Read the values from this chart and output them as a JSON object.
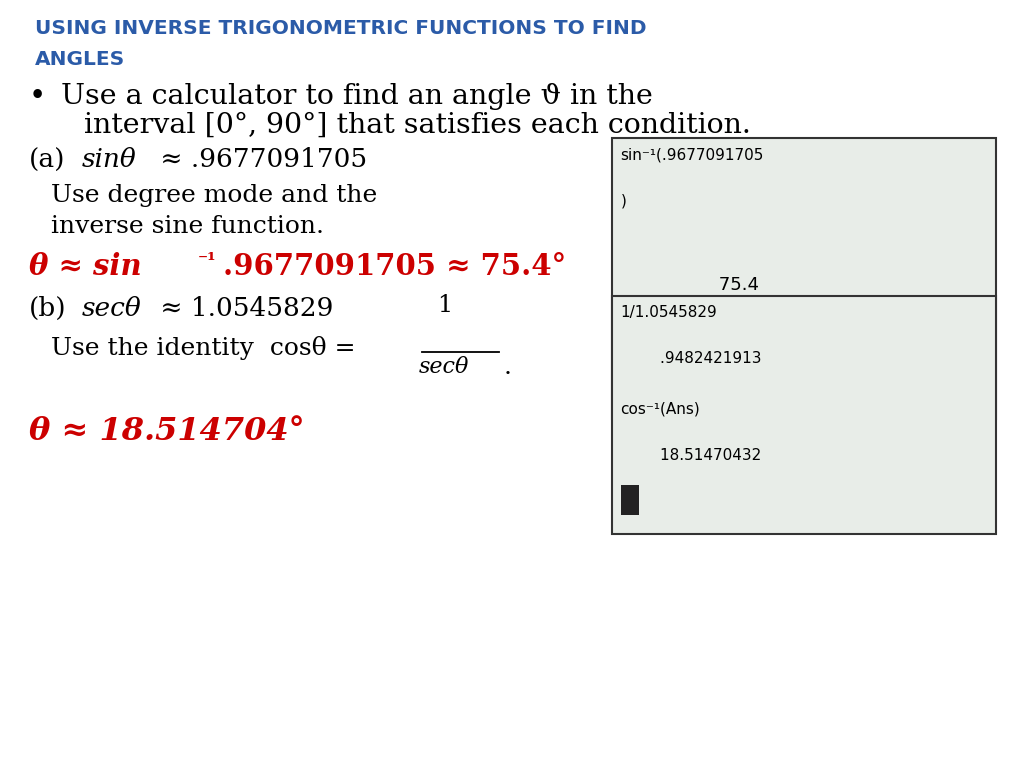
{
  "title_line1": "USING INVERSE TRIGONOMETRIC FUNCTIONS TO FIND",
  "title_line2": "ANGLES",
  "title_color": "#2B5BA8",
  "bullet_theta": "ϑ",
  "red_color": "#CC0000",
  "black_color": "#000000",
  "calc_bg": "#E8EDE8",
  "calc_border": "#333333",
  "bg_color": "#FFFFFF",
  "calc1_line1": "sin⁻¹(.9677091705",
  "calc1_line2": ")",
  "calc1_line3": "75.4",
  "calc2_line1": "1/1.0545829",
  "calc2_line2": ".9482421913",
  "calc2_line3": "cos⁻¹(Ans)",
  "calc2_line4": "18.51470432"
}
